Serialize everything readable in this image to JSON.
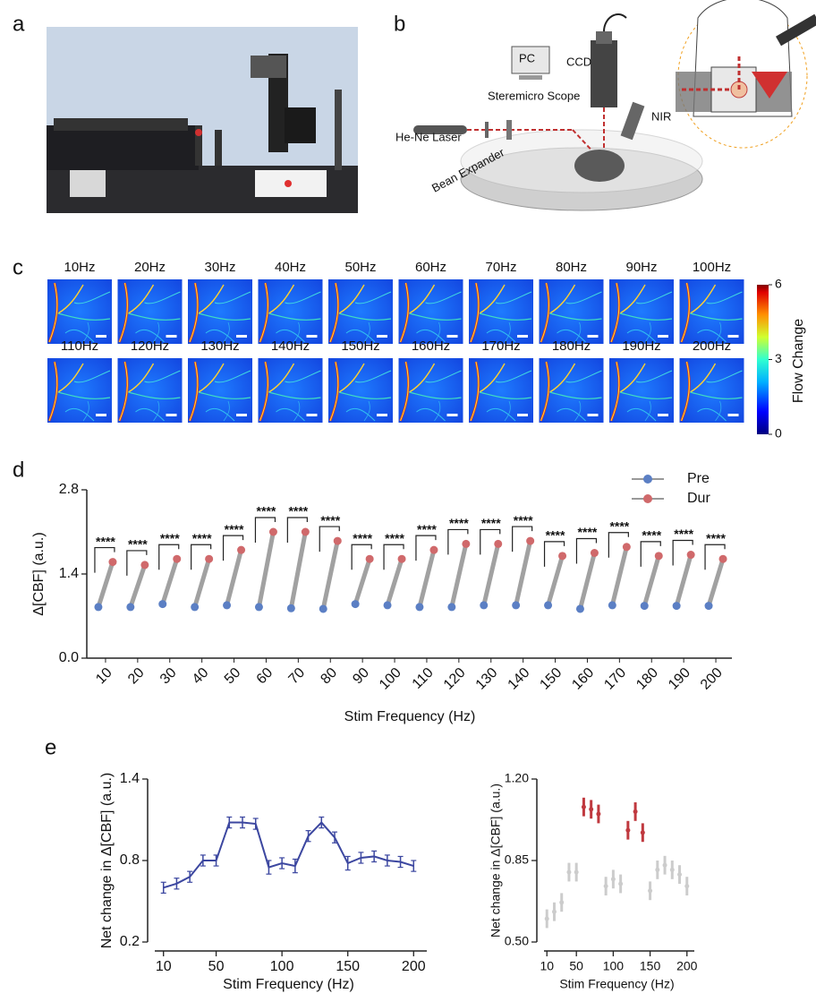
{
  "panel_labels": [
    "a",
    "b",
    "c",
    "d",
    "e"
  ],
  "diagram": {
    "pc": "PC",
    "ccd": "CCD",
    "scope": "Steremicro Scope",
    "laser": "He-Ne Laser",
    "expander": "Bean Expander",
    "nir": "NIR"
  },
  "flow_maps": {
    "frequencies": [
      "10Hz",
      "20Hz",
      "30Hz",
      "40Hz",
      "50Hz",
      "60Hz",
      "70Hz",
      "80Hz",
      "90Hz",
      "100Hz",
      "110Hz",
      "120Hz",
      "130Hz",
      "140Hz",
      "150Hz",
      "160Hz",
      "170Hz",
      "180Hz",
      "190Hz",
      "200Hz"
    ],
    "colorbar_label": "Flow Change",
    "colorbar_lim": [
      0,
      6
    ],
    "colorbar_ticks": [
      0,
      3,
      6
    ]
  },
  "chart_data": [
    {
      "type": "paired",
      "ylabel": "Δ[CBF] (a.u.)",
      "xlabel": "Stim Frequency (Hz)",
      "categories": [
        "10",
        "20",
        "30",
        "40",
        "50",
        "60",
        "70",
        "80",
        "90",
        "100",
        "110",
        "120",
        "130",
        "140",
        "150",
        "160",
        "170",
        "180",
        "190",
        "200"
      ],
      "series": [
        {
          "name": "Pre",
          "color": "#5b7fc4",
          "values": [
            0.85,
            0.85,
            0.9,
            0.85,
            0.88,
            0.85,
            0.83,
            0.82,
            0.9,
            0.88,
            0.85,
            0.85,
            0.88,
            0.88,
            0.88,
            0.82,
            0.88,
            0.87,
            0.87,
            0.87
          ]
        },
        {
          "name": "Dur",
          "color": "#d0696b",
          "values": [
            1.6,
            1.55,
            1.65,
            1.65,
            1.8,
            2.1,
            2.1,
            1.95,
            1.65,
            1.65,
            1.8,
            1.9,
            1.9,
            1.95,
            1.7,
            1.75,
            1.85,
            1.7,
            1.72,
            1.65
          ]
        }
      ],
      "significance": [
        "****",
        "****",
        "****",
        "****",
        "****",
        "****",
        "****",
        "****",
        "****",
        "****",
        "****",
        "****",
        "****",
        "****",
        "****",
        "****",
        "****",
        "****",
        "****",
        "****"
      ],
      "ylim": [
        0,
        2.8
      ],
      "yticks": [
        {
          "value": 0,
          "label": "0.0"
        },
        1.4,
        2.8
      ],
      "legend": "upper right"
    },
    {
      "type": "line",
      "ylabel": "Net change in Δ[CBF] (a.u.)",
      "xlabel": "Stim Frequency (Hz)",
      "x": [
        10,
        20,
        30,
        40,
        50,
        60,
        70,
        80,
        90,
        100,
        110,
        120,
        130,
        140,
        150,
        160,
        170,
        180,
        190,
        200
      ],
      "values": [
        0.6,
        0.63,
        0.68,
        0.8,
        0.8,
        1.08,
        1.08,
        1.07,
        0.75,
        0.78,
        0.76,
        0.98,
        1.08,
        0.97,
        0.78,
        0.82,
        0.83,
        0.8,
        0.79,
        0.76
      ],
      "errors": [
        0.04,
        0.04,
        0.04,
        0.04,
        0.04,
        0.04,
        0.04,
        0.04,
        0.05,
        0.04,
        0.05,
        0.04,
        0.04,
        0.04,
        0.05,
        0.04,
        0.04,
        0.04,
        0.04,
        0.04
      ],
      "color": "#3c47a0",
      "xlim": [
        0,
        210
      ],
      "xticks": [
        10,
        50,
        100,
        150,
        200
      ],
      "ylim": [
        0.2,
        1.4
      ],
      "yticks": [
        0.2,
        0.8,
        1.4
      ]
    },
    {
      "type": "errorbar",
      "ylabel": "Net change in Δ[CBF] (a.u.)",
      "xlabel": "Stim Frequency (Hz)",
      "x": [
        10,
        20,
        30,
        40,
        50,
        60,
        70,
        80,
        90,
        100,
        110,
        120,
        130,
        140,
        150,
        160,
        170,
        180,
        190,
        200
      ],
      "values": [
        0.6,
        0.63,
        0.67,
        0.8,
        0.8,
        1.08,
        1.07,
        1.05,
        0.74,
        0.77,
        0.75,
        0.98,
        1.06,
        0.97,
        0.72,
        0.81,
        0.83,
        0.81,
        0.79,
        0.74
      ],
      "errors": [
        0.04,
        0.04,
        0.04,
        0.04,
        0.04,
        0.04,
        0.04,
        0.04,
        0.04,
        0.04,
        0.04,
        0.04,
        0.04,
        0.04,
        0.04,
        0.04,
        0.04,
        0.04,
        0.04,
        0.04
      ],
      "colors": [
        "#cccccc",
        "#cccccc",
        "#cccccc",
        "#cccccc",
        "#cccccc",
        "#c0393f",
        "#c0393f",
        "#c0393f",
        "#cccccc",
        "#cccccc",
        "#cccccc",
        "#c0393f",
        "#c0393f",
        "#c0393f",
        "#cccccc",
        "#cccccc",
        "#cccccc",
        "#cccccc",
        "#cccccc",
        "#cccccc"
      ],
      "xlim": [
        0,
        210
      ],
      "xticks": [
        10,
        50,
        100,
        150,
        200
      ],
      "ylim": [
        0.5,
        1.2
      ],
      "yticks": [
        {
          "value": 0.5,
          "label": "0.50"
        },
        0.85,
        {
          "value": 1.2,
          "label": "1.20"
        }
      ]
    }
  ]
}
